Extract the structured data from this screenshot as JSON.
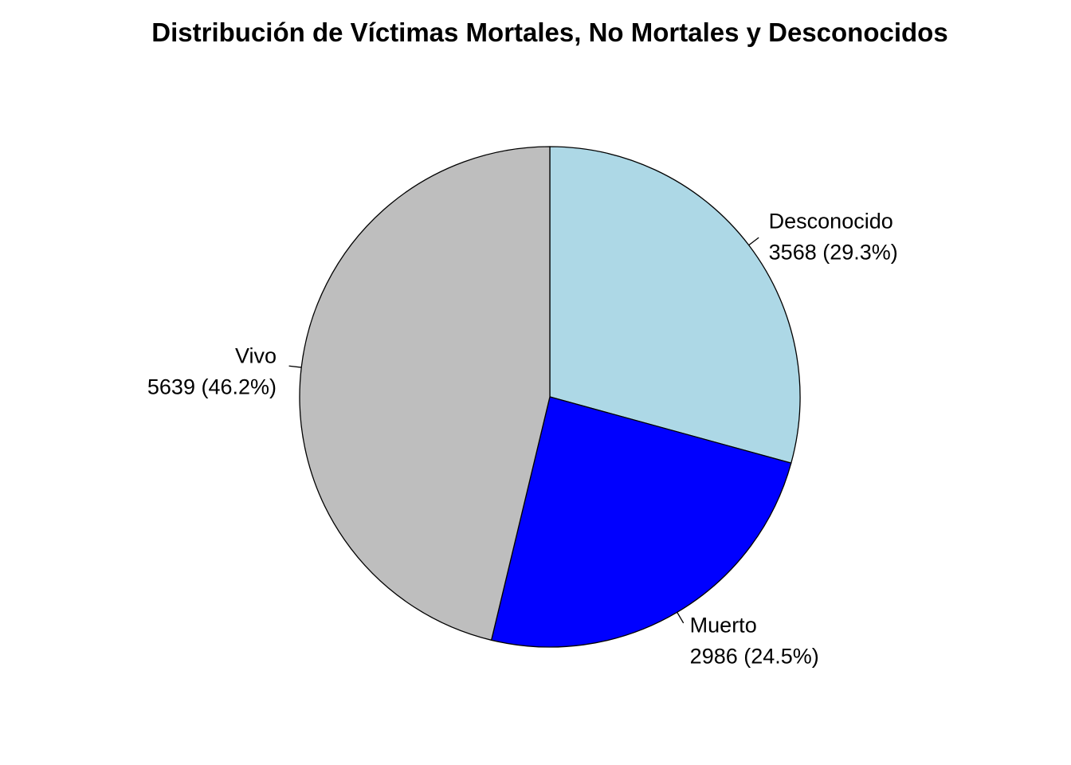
{
  "chart_data": {
    "type": "pie",
    "title": "Distribución de Víctimas Mortales, No Mortales y Desconocidos",
    "direction": "clockwise",
    "start_angle": "12 o'clock",
    "slices": [
      {
        "label": "Desconocido",
        "value": 3568,
        "percent_label": "3568 (29.3%)",
        "color": "#ADD8E6"
      },
      {
        "label": "Muerto",
        "value": 2986,
        "percent_label": "2986 (24.5%)",
        "color": "#0000FF"
      },
      {
        "label": "Vivo",
        "value": 5639,
        "percent_label": "5639 (46.2%)",
        "color": "#BEBEBE"
      }
    ]
  }
}
